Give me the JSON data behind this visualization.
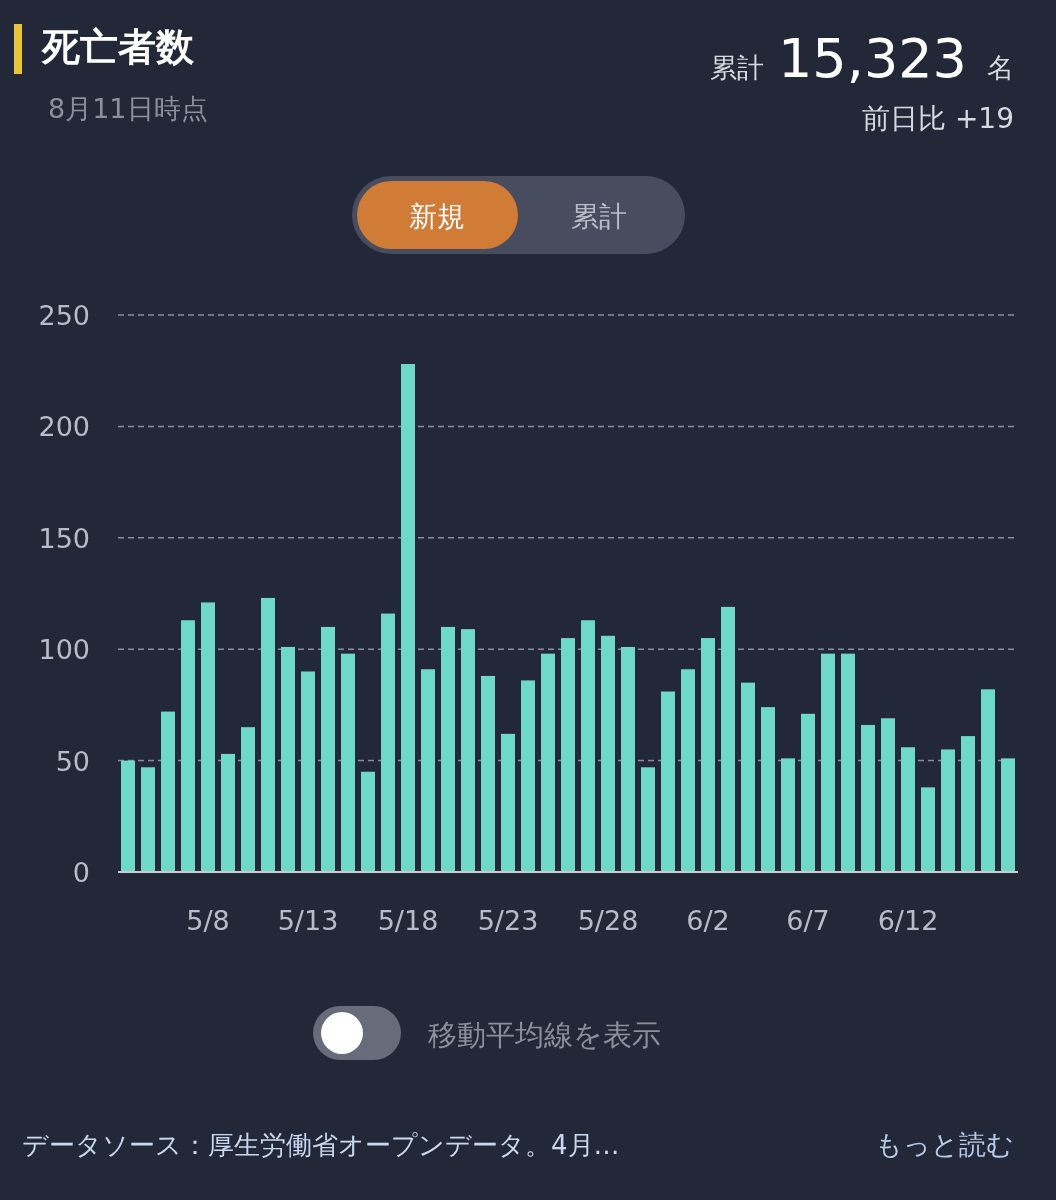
{
  "chart_data": {
    "type": "bar",
    "title": "死亡者数",
    "subtitle": "8月11日時点",
    "annotations": [
      "累計",
      "15,323",
      "名",
      "前日比 +19",
      "新規",
      "累計",
      "移動平均線を表示",
      "データソース：厚生労働省オープンデータ。4月…",
      "もっと読む"
    ],
    "categories": [
      null,
      null,
      null,
      null,
      "5/8",
      null,
      null,
      null,
      null,
      "5/13",
      null,
      null,
      null,
      null,
      "5/18",
      null,
      null,
      null,
      null,
      "5/23",
      null,
      null,
      null,
      null,
      "5/28",
      null,
      null,
      null,
      null,
      "6/2",
      null,
      null,
      null,
      null,
      "6/7",
      null,
      null,
      null,
      null,
      "6/12",
      null,
      null,
      null,
      null,
      null
    ],
    "values": [
      50,
      47,
      72,
      113,
      121,
      53,
      65,
      123,
      101,
      90,
      110,
      98,
      45,
      116,
      228,
      91,
      110,
      109,
      88,
      62,
      86,
      98,
      105,
      113,
      106,
      101,
      47,
      81,
      91,
      105,
      119,
      85,
      74,
      51,
      71,
      98,
      98,
      66,
      69,
      56,
      38,
      55,
      61,
      82,
      51
    ],
    "color": "#6fd9c8",
    "ylim": [
      0,
      250
    ],
    "yticks": [
      0,
      50,
      100,
      150,
      200,
      250
    ],
    "grid": "y"
  }
}
